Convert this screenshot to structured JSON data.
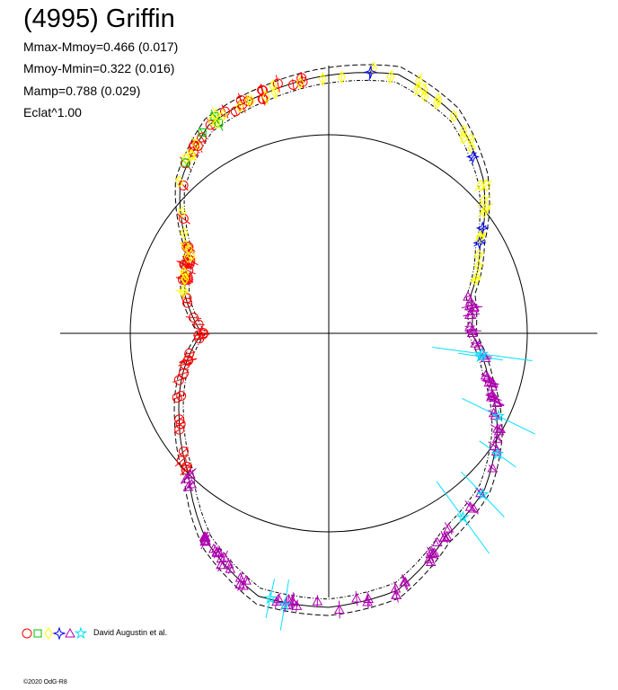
{
  "header": {
    "title": "(4995) Griffin",
    "stat_max_moy": "Mmax-Mmoy=0.466 (0.017)",
    "stat_moy_min": "Mmoy-Mmin=0.322 (0.016)",
    "stat_amp": "Mamp=0.788 (0.029)",
    "eclat": "Eclat^1.00"
  },
  "legend": {
    "author": "David Augustin et al."
  },
  "footer": "©2020 OdG-R8",
  "colors": {
    "axes": "#000000",
    "red": "#ff0000",
    "green": "#00c000",
    "yellow": "#ffff00",
    "blue": "#0000ff",
    "magenta": "#b000b0",
    "cyan": "#00e0ff"
  },
  "chart_data": {
    "type": "scatter",
    "coordinate_system": "polar",
    "description_of_axes": "Polar light-curve plot; radius = relative flux, angle = rotational phase",
    "reference_circle_radius": 1.0,
    "xlim": [
      -1.35,
      1.35
    ],
    "ylim": [
      -1.35,
      1.35
    ],
    "curve": {
      "phase_deg": [
        0,
        15,
        30,
        45,
        60,
        75,
        90,
        105,
        120,
        135,
        150,
        165,
        180,
        195,
        210,
        225,
        240,
        255,
        270,
        285,
        300,
        315,
        330,
        345
      ],
      "radius": [
        0.72,
        0.74,
        0.88,
        1.1,
        1.27,
        1.35,
        1.3,
        1.25,
        1.21,
        1.06,
        0.81,
        0.75,
        0.64,
        0.76,
        0.87,
        1.0,
        1.22,
        1.37,
        1.38,
        1.34,
        1.18,
        1.11,
        0.98,
        0.83
      ]
    },
    "series": [
      {
        "marker": "circle",
        "color": "red",
        "phase_deg_range": [
          95,
          225
        ],
        "count": 60
      },
      {
        "marker": "square",
        "color": "green",
        "phase_deg_range": [
          100,
          140
        ],
        "count": 4
      },
      {
        "marker": "diamond",
        "color": "yellow",
        "phase_deg_range": [
          20,
          165
        ],
        "count": 55
      },
      {
        "marker": "star4",
        "color": "blue",
        "phase_deg_range": [
          25,
          130
        ],
        "count": 4
      },
      {
        "marker": "triangle",
        "color": "magenta",
        "phase_deg_range": [
          225,
          375
        ],
        "count": 90
      },
      {
        "marker": "star5",
        "color": "cyan",
        "phase_deg_range": [
          250,
          360
        ],
        "count": 8
      }
    ]
  }
}
